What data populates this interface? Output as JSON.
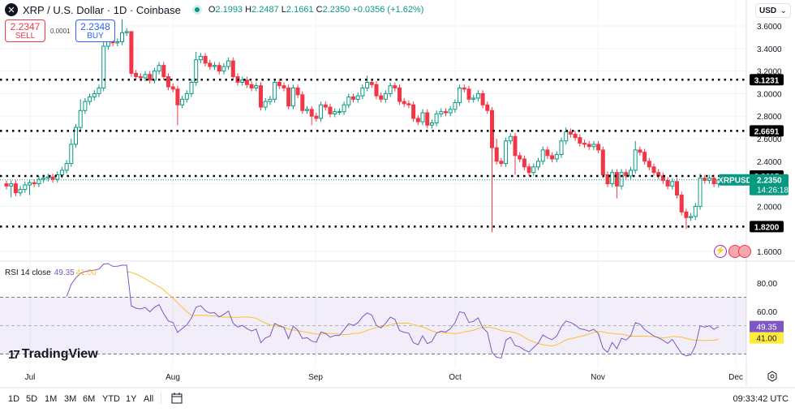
{
  "header": {
    "symbol": "XRP / U.S. Dollar · 1D · Coinbase",
    "open_label": "O",
    "open": "2.1993",
    "high_label": "H",
    "high": "2.2487",
    "low_label": "L",
    "low": "2.1661",
    "close_label": "C",
    "close": "2.2350",
    "change": "+0.0356 (+1.62%)"
  },
  "trade": {
    "sell_price": "2.2347",
    "sell_label": "SELL",
    "spread": "0.0001",
    "buy_price": "2.2348",
    "buy_label": "BUY"
  },
  "currency": "USD",
  "rsi": {
    "label": "RSI 14 close",
    "value": "49.35",
    "ma": "41.00",
    "ticks": [
      "80.00",
      "60.00"
    ],
    "value_color": "#7e57c2",
    "ma_color": "#fbc02d"
  },
  "branding": "TradingView",
  "timeframes": [
    "1D",
    "5D",
    "1M",
    "3M",
    "6M",
    "YTD",
    "1Y",
    "All"
  ],
  "clock": "09:33:42 UTC",
  "colors": {
    "up": "#089981",
    "down": "#f23645"
  },
  "chart_data": {
    "type": "candlestick",
    "symbol_label": "XRPUSD",
    "last_price": "2.2350",
    "countdown": "14:26:18",
    "y_ticks": [
      3.6,
      3.4,
      3.2,
      3.0,
      2.8,
      2.6,
      2.4,
      2.0,
      1.6
    ],
    "ylim": [
      1.6,
      3.6
    ],
    "x_ticks": [
      "Jul",
      "Aug",
      "Sep",
      "Oct",
      "Nov",
      "Dec"
    ],
    "levels": [
      3.1231,
      2.6691,
      2.2695,
      1.82
    ],
    "first_open": 2.2,
    "closes": [
      2.18,
      2.2,
      2.12,
      2.15,
      2.19,
      2.21,
      2.2,
      2.24,
      2.25,
      2.26,
      2.24,
      2.28,
      2.32,
      2.38,
      2.55,
      2.7,
      2.85,
      2.93,
      2.97,
      3.0,
      3.05,
      3.42,
      3.47,
      3.45,
      3.46,
      3.54,
      3.55,
      3.18,
      3.15,
      3.14,
      3.17,
      3.12,
      3.2,
      3.25,
      3.15,
      3.06,
      3.04,
      2.9,
      2.95,
      3.0,
      3.1,
      3.3,
      3.33,
      3.27,
      3.24,
      3.25,
      3.2,
      3.24,
      3.29,
      3.15,
      3.1,
      3.12,
      3.08,
      3.05,
      3.07,
      2.88,
      2.93,
      2.95,
      3.1,
      3.07,
      3.05,
      2.89,
      3.05,
      2.99,
      2.85,
      2.86,
      2.8,
      2.78,
      2.9,
      2.88,
      2.82,
      2.84,
      2.84,
      2.9,
      2.97,
      2.95,
      2.98,
      3.05,
      3.1,
      3.08,
      2.98,
      2.95,
      3.0,
      3.07,
      3.05,
      2.93,
      2.91,
      2.9,
      2.78,
      2.75,
      2.83,
      2.72,
      2.74,
      2.82,
      2.84,
      2.83,
      2.86,
      2.92,
      3.05,
      3.04,
      2.95,
      2.96,
      3.0,
      2.9,
      2.85,
      2.52,
      2.4,
      2.38,
      2.58,
      2.62,
      2.45,
      2.42,
      2.35,
      2.3,
      2.35,
      2.4,
      2.5,
      2.45,
      2.42,
      2.46,
      2.58,
      2.66,
      2.64,
      2.61,
      2.56,
      2.55,
      2.53,
      2.55,
      2.5,
      2.28,
      2.2,
      2.3,
      2.18,
      2.3,
      2.27,
      2.32,
      2.5,
      2.48,
      2.4,
      2.35,
      2.3,
      2.27,
      2.23,
      2.18,
      2.22,
      2.1,
      1.95,
      1.9,
      1.91,
      2.0,
      2.25,
      2.23,
      2.25,
      2.2,
      2.235
    ],
    "high_overrides": {
      "14": 2.6,
      "16": 2.95,
      "21": 3.55,
      "25": 3.66,
      "27": 3.5,
      "41": 3.37,
      "78": 3.16,
      "106": 2.6,
      "121": 2.7,
      "136": 2.58,
      "150": 2.29,
      "154": 2.2487
    },
    "low_overrides": {
      "1": 2.08,
      "5": 2.1,
      "37": 2.72,
      "66": 2.72,
      "105": 1.77,
      "110": 2.28,
      "132": 2.07,
      "147": 1.8,
      "154": 2.1661
    }
  }
}
